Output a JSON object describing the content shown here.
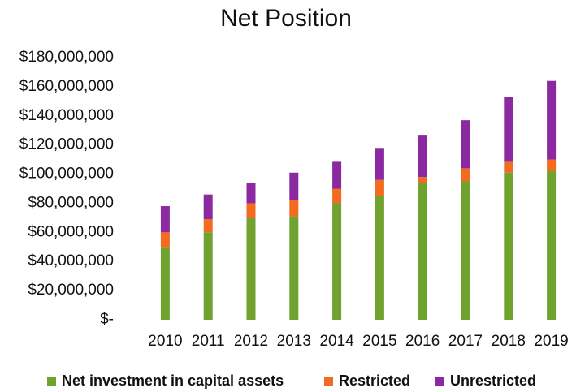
{
  "chart_data": {
    "type": "stacked_bar",
    "title": "Net Position",
    "categories": [
      "2010",
      "2011",
      "2012",
      "2013",
      "2014",
      "2015",
      "2016",
      "2017",
      "2018",
      "2019"
    ],
    "series": [
      {
        "name": "Net investment in capital assets",
        "color": "#70a22f",
        "values": [
          50000000,
          60000000,
          70000000,
          71000000,
          80000000,
          85000000,
          94000000,
          95000000,
          101000000,
          102000000
        ]
      },
      {
        "name": "Restricted",
        "color": "#f26b21",
        "values": [
          10000000,
          9000000,
          10000000,
          11000000,
          10000000,
          11000000,
          4000000,
          9000000,
          8000000,
          8000000
        ]
      },
      {
        "name": "Unrestricted",
        "color": "#8b2aa0",
        "values": [
          18000000,
          17000000,
          14000000,
          19000000,
          19000000,
          22000000,
          29000000,
          33000000,
          44000000,
          54000000
        ]
      }
    ],
    "ylim": [
      0,
      180000000
    ],
    "yticks": [
      {
        "value": 0,
        "label": "$-"
      },
      {
        "value": 20000000,
        "label": "$20,000,000"
      },
      {
        "value": 40000000,
        "label": "$40,000,000"
      },
      {
        "value": 60000000,
        "label": "$60,000,000"
      },
      {
        "value": 80000000,
        "label": "$80,000,000"
      },
      {
        "value": 100000000,
        "label": "$100,000,000"
      },
      {
        "value": 120000000,
        "label": "$120,000,000"
      },
      {
        "value": 140000000,
        "label": "$140,000,000"
      },
      {
        "value": 160000000,
        "label": "$160,000,000"
      },
      {
        "value": 180000000,
        "label": "$180,000,000"
      }
    ],
    "grid": false,
    "legend": "bottom"
  }
}
